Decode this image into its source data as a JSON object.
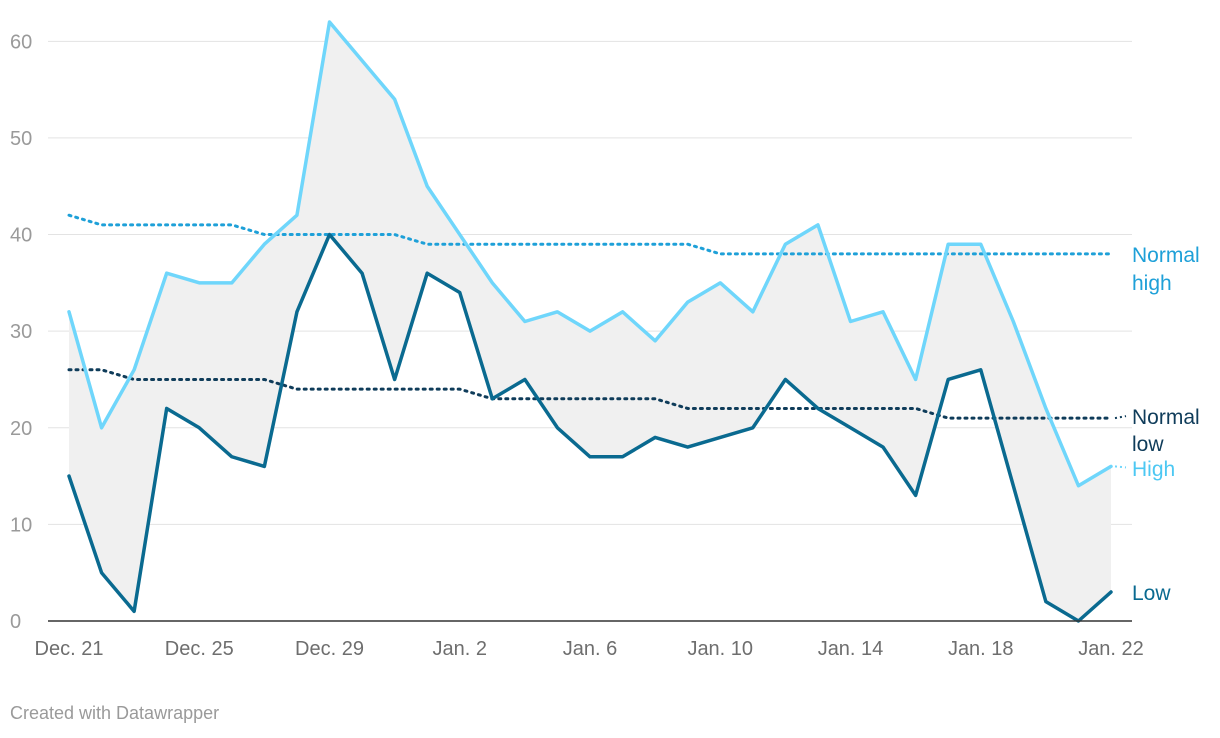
{
  "chart_data": {
    "type": "line",
    "x": [
      "Dec. 21",
      "Dec. 22",
      "Dec. 23",
      "Dec. 24",
      "Dec. 25",
      "Dec. 26",
      "Dec. 27",
      "Dec. 28",
      "Dec. 29",
      "Dec. 30",
      "Dec. 31",
      "Jan. 1",
      "Jan. 2",
      "Jan. 3",
      "Jan. 4",
      "Jan. 5",
      "Jan. 6",
      "Jan. 7",
      "Jan. 8",
      "Jan. 9",
      "Jan. 10",
      "Jan. 11",
      "Jan. 12",
      "Jan. 13",
      "Jan. 14",
      "Jan. 15",
      "Jan. 16",
      "Jan. 17",
      "Jan. 18",
      "Jan. 19",
      "Jan. 20",
      "Jan. 21",
      "Jan. 22"
    ],
    "x_tick_labels": [
      "Dec. 21",
      "Dec. 25",
      "Dec. 29",
      "Jan. 2",
      "Jan. 6",
      "Jan. 10",
      "Jan. 14",
      "Jan. 18",
      "Jan. 22"
    ],
    "x_tick_indices": [
      0,
      4,
      8,
      12,
      16,
      20,
      24,
      28,
      32
    ],
    "y_ticks": [
      0,
      10,
      20,
      30,
      40,
      50,
      60
    ],
    "ylim": [
      0,
      62
    ],
    "grid": true,
    "shaded_range": "between High and Low",
    "series": [
      {
        "name": "High",
        "style": "solid",
        "color": "#6fd6fb",
        "values": [
          32,
          20,
          26,
          36,
          35,
          35,
          39,
          42,
          62,
          58,
          54,
          45,
          40,
          35,
          31,
          32,
          30,
          32,
          29,
          33,
          35,
          32,
          39,
          41,
          31,
          32,
          25,
          39,
          39,
          31,
          22,
          14,
          16
        ]
      },
      {
        "name": "Low",
        "style": "solid",
        "color": "#0a6a90",
        "values": [
          15,
          5,
          1,
          22,
          20,
          17,
          16,
          32,
          40,
          36,
          25,
          36,
          34,
          23,
          25,
          20,
          17,
          17,
          19,
          18,
          19,
          20,
          25,
          22,
          20,
          18,
          13,
          25,
          26,
          14,
          2,
          0,
          3
        ]
      },
      {
        "name": "Normal high",
        "style": "dotted",
        "color": "#1ea0d8",
        "values": [
          42,
          41,
          41,
          41,
          41,
          41,
          40,
          40,
          40,
          40,
          40,
          39,
          39,
          39,
          39,
          39,
          39,
          39,
          39,
          39,
          38,
          38,
          38,
          38,
          38,
          38,
          38,
          38,
          38,
          38,
          38,
          38,
          38
        ]
      },
      {
        "name": "Normal low",
        "style": "dotted",
        "color": "#0f3c5a",
        "values": [
          26,
          26,
          25,
          25,
          25,
          25,
          25,
          24,
          24,
          24,
          24,
          24,
          24,
          23,
          23,
          23,
          23,
          23,
          23,
          22,
          22,
          22,
          22,
          22,
          22,
          22,
          22,
          21,
          21,
          21,
          21,
          21,
          21
        ]
      }
    ],
    "labels": {
      "normal_high_line1": "Normal",
      "normal_high_line2": "high",
      "normal_low_line1": "Normal",
      "normal_low_line2": "low",
      "high": "High",
      "low": "Low"
    },
    "colors": {
      "high": "#6fd6fb",
      "low": "#0a6a90",
      "normal_high": "#1ea0d8",
      "normal_low": "#0f3c5a",
      "range_fill": "#f0f0f0",
      "grid": "#e3e3e3",
      "axis": "#333333"
    }
  },
  "credit": "Created with Datawrapper"
}
